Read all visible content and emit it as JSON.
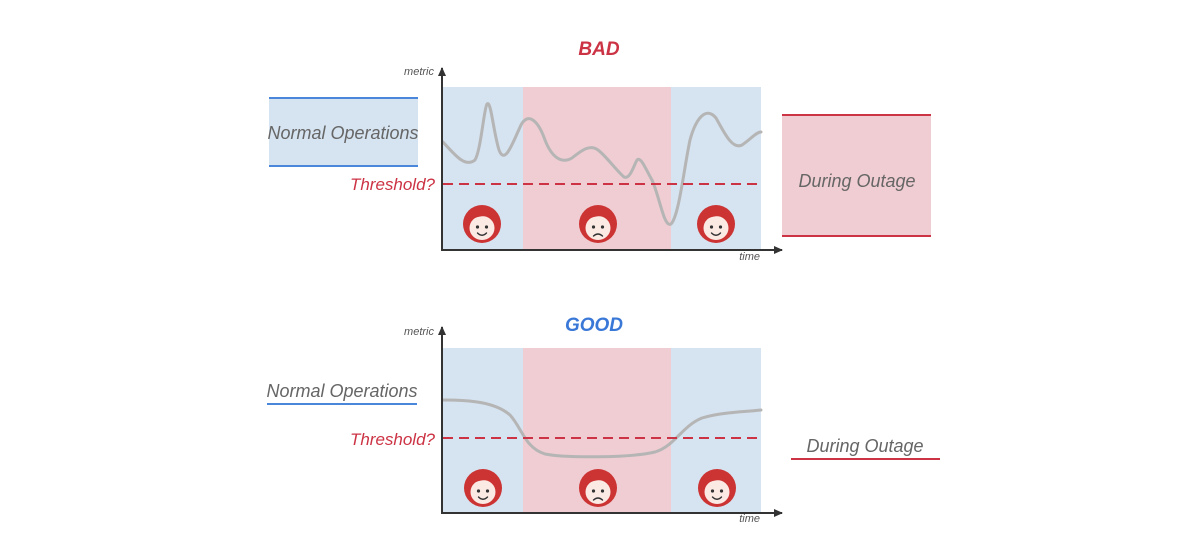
{
  "colors": {
    "normal_fill": "#d6e3f0",
    "outage_fill": "#f0cdd2",
    "normal_line": "#4a86d9",
    "outage_line": "#cc3344",
    "bad_title": "#cc3344",
    "good_title": "#3a78d8",
    "threshold": "#cc3344",
    "metric_line": "#b5b5b5",
    "axis": "#333333",
    "face": "#cc3333"
  },
  "icons": [
    "happy-face-icon",
    "sad-face-icon"
  ],
  "panels": [
    {
      "id": "bad",
      "title": "BAD",
      "y_label": "metric",
      "x_label": "time",
      "threshold_label": "Threshold?",
      "normal_label": "Normal Operations",
      "outage_label": "During Outage",
      "faces": [
        "happy",
        "sad",
        "happy"
      ]
    },
    {
      "id": "good",
      "title": "GOOD",
      "y_label": "metric",
      "x_label": "time",
      "threshold_label": "Threshold?",
      "normal_label": "Normal Operations",
      "outage_label": "During Outage",
      "faces": [
        "happy",
        "sad",
        "happy"
      ]
    }
  ]
}
